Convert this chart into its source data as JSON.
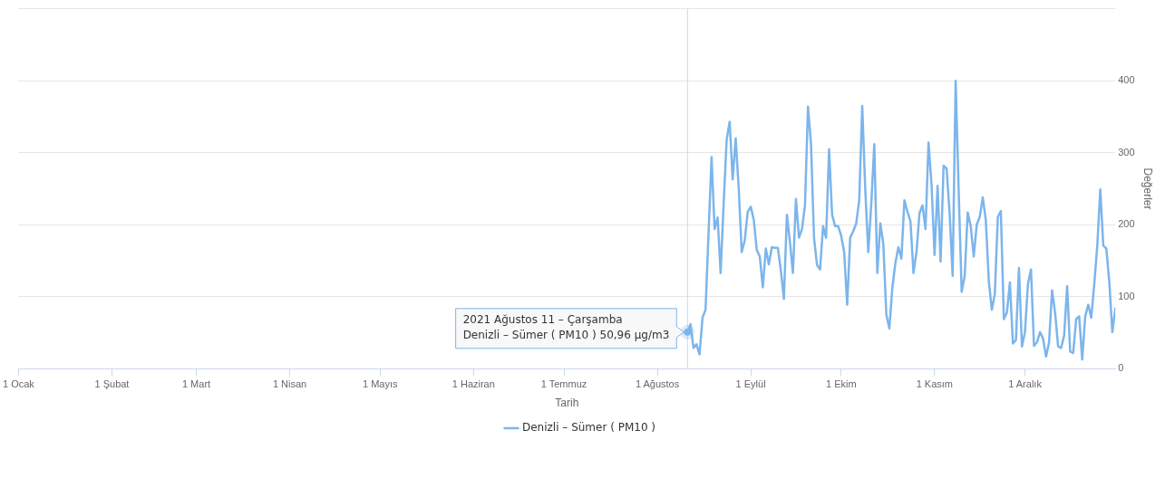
{
  "chart_data": {
    "type": "line",
    "xlabel": "Tarih",
    "ylabel": "Değerler",
    "xlim": [
      "2021-01-01",
      "2021-12-31"
    ],
    "xticks": [
      {
        "value": "2021-01-01",
        "label": "1 Ocak"
      },
      {
        "value": "2021-02-01",
        "label": "1 Şubat"
      },
      {
        "value": "2021-03-01",
        "label": "1 Mart"
      },
      {
        "value": "2021-04-01",
        "label": "1 Nisan"
      },
      {
        "value": "2021-05-01",
        "label": "1 Mayıs"
      },
      {
        "value": "2021-06-01",
        "label": "1 Haziran"
      },
      {
        "value": "2021-07-01",
        "label": "1 Temmuz"
      },
      {
        "value": "2021-08-01",
        "label": "1 Ağustos"
      },
      {
        "value": "2021-09-01",
        "label": "1 Eylül"
      },
      {
        "value": "2021-10-01",
        "label": "1 Ekim"
      },
      {
        "value": "2021-11-01",
        "label": "1 Kasım"
      },
      {
        "value": "2021-12-01",
        "label": "1 Aralık"
      }
    ],
    "ylim": [
      0,
      500
    ],
    "yticks": [
      0,
      100,
      200,
      300,
      400,
      {
        "value": 500,
        "label": null
      }
    ],
    "grid": "y",
    "legend": "bottom",
    "marker": "none",
    "line_style": "solid",
    "ref_lines": [
      {
        "axis": "x",
        "value": "2021-08-11",
        "color": "#ccd6eb"
      }
    ],
    "annotations": [
      {
        "text": "2021 Ağustos 11 – Çarşamba\nDenizli – Sümer ( PM10 ) 50,96 µg/m3",
        "x": "2021-08-11",
        "y": 50.96
      }
    ],
    "series": [
      {
        "name": "Denizli – Sümer ( PM10 )",
        "color": "#7cb5ec",
        "x": [
          "2021-08-11",
          "2021-08-12",
          "2021-08-13",
          "2021-08-14",
          "2021-08-15",
          "2021-08-16",
          "2021-08-17",
          "2021-08-18",
          "2021-08-19",
          "2021-08-20",
          "2021-08-21",
          "2021-08-22",
          "2021-08-23",
          "2021-08-24",
          "2021-08-25",
          "2021-08-26",
          "2021-08-27",
          "2021-08-28",
          "2021-08-29",
          "2021-08-30",
          "2021-08-31",
          "2021-09-01",
          "2021-09-02",
          "2021-09-03",
          "2021-09-04",
          "2021-09-05",
          "2021-09-06",
          "2021-09-07",
          "2021-09-08",
          "2021-09-09",
          "2021-09-10",
          "2021-09-11",
          "2021-09-12",
          "2021-09-13",
          "2021-09-14",
          "2021-09-15",
          "2021-09-16",
          "2021-09-17",
          "2021-09-18",
          "2021-09-19",
          "2021-09-20",
          "2021-09-21",
          "2021-09-22",
          "2021-09-23",
          "2021-09-24",
          "2021-09-25",
          "2021-09-26",
          "2021-09-27",
          "2021-09-28",
          "2021-09-29",
          "2021-09-30",
          "2021-10-01",
          "2021-10-02",
          "2021-10-03",
          "2021-10-04",
          "2021-10-05",
          "2021-10-06",
          "2021-10-07",
          "2021-10-08",
          "2021-10-09",
          "2021-10-10",
          "2021-10-11",
          "2021-10-12",
          "2021-10-13",
          "2021-10-14",
          "2021-10-15",
          "2021-10-16",
          "2021-10-17",
          "2021-10-18",
          "2021-10-19",
          "2021-10-20",
          "2021-10-21",
          "2021-10-22",
          "2021-10-23",
          "2021-10-24",
          "2021-10-25",
          "2021-10-26",
          "2021-10-27",
          "2021-10-28",
          "2021-10-29",
          "2021-10-30",
          "2021-10-31",
          "2021-11-01",
          "2021-11-02",
          "2021-11-03",
          "2021-11-04",
          "2021-11-05",
          "2021-11-06",
          "2021-11-07",
          "2021-11-08",
          "2021-11-09",
          "2021-11-10",
          "2021-11-11",
          "2021-11-12",
          "2021-11-13",
          "2021-11-14",
          "2021-11-15",
          "2021-11-16",
          "2021-11-17",
          "2021-11-18",
          "2021-11-19",
          "2021-11-20",
          "2021-11-21",
          "2021-11-22",
          "2021-11-23",
          "2021-11-24",
          "2021-11-25",
          "2021-11-26",
          "2021-11-27",
          "2021-11-28",
          "2021-11-29",
          "2021-11-30",
          "2021-12-01",
          "2021-12-02",
          "2021-12-03",
          "2021-12-04",
          "2021-12-05",
          "2021-12-06",
          "2021-12-07",
          "2021-12-08",
          "2021-12-09",
          "2021-12-10",
          "2021-12-11",
          "2021-12-12",
          "2021-12-13",
          "2021-12-14",
          "2021-12-15",
          "2021-12-16",
          "2021-12-17",
          "2021-12-18",
          "2021-12-19",
          "2021-12-20",
          "2021-12-21",
          "2021-12-22",
          "2021-12-23",
          "2021-12-24",
          "2021-12-25",
          "2021-12-26",
          "2021-12-27",
          "2021-12-28",
          "2021-12-29",
          "2021-12-30",
          "2021-12-31"
        ],
        "values": [
          50.96,
          62,
          29,
          34,
          20,
          71,
          82,
          189,
          294,
          194,
          210,
          133,
          229,
          318,
          343,
          263,
          320,
          251,
          162,
          178,
          218,
          225,
          207,
          165,
          156,
          113,
          167,
          145,
          169,
          168,
          168,
          136,
          97,
          214,
          176,
          133,
          236,
          182,
          194,
          227,
          364,
          312,
          182,
          144,
          138,
          198,
          182,
          305,
          214,
          198,
          198,
          185,
          162,
          89,
          182,
          191,
          202,
          234,
          365,
          249,
          162,
          229,
          312,
          133,
          202,
          173,
          75,
          56,
          113,
          147,
          169,
          153,
          234,
          218,
          205,
          133,
          162,
          216,
          227,
          194,
          314,
          256,
          158,
          254,
          149,
          282,
          278,
          216,
          129,
          400,
          247,
          107,
          129,
          217,
          198,
          156,
          200,
          211,
          238,
          207,
          122,
          82,
          104,
          211,
          219,
          69,
          78,
          120,
          35,
          40,
          140,
          31,
          51,
          118,
          138,
          32,
          37,
          51,
          42,
          17,
          37,
          109,
          78,
          31,
          29,
          46,
          115,
          24,
          22,
          69,
          73,
          13,
          73,
          89,
          71,
          118,
          171,
          249,
          171,
          167,
          120,
          51,
          84
        ]
      }
    ]
  }
}
